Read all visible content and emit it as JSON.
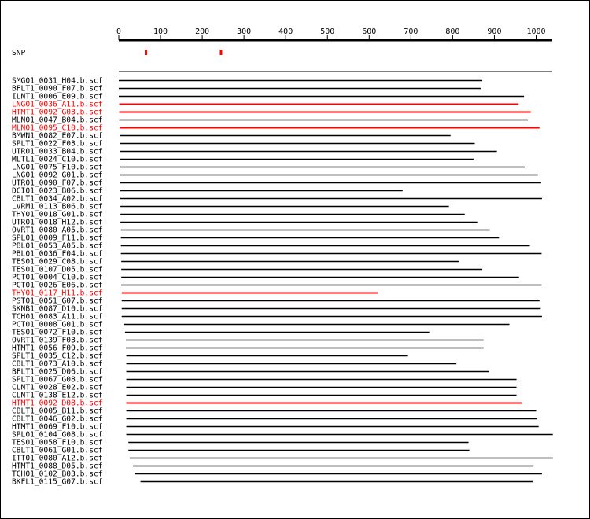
{
  "chart_data": {
    "type": "alignment",
    "axis": {
      "min": 0,
      "max": 1040,
      "ticks": [
        0,
        100,
        200,
        300,
        400,
        500,
        600,
        700,
        800,
        900,
        1000
      ]
    },
    "snp_label": "SNP",
    "snps": [
      65,
      245
    ],
    "colors": {
      "normal": "#000000",
      "highlight": "#ff0000"
    },
    "reads": [
      {
        "name": "SMG01_0031_H04.b.scf",
        "start": 0,
        "end": 871,
        "highlight": false
      },
      {
        "name": "BFLT1_0090_F07.b.scf",
        "start": 0,
        "end": 867,
        "highlight": false
      },
      {
        "name": "ILNT1_0006_E09.b.scf",
        "start": 0,
        "end": 971,
        "highlight": false
      },
      {
        "name": "LNG01_0036_A11.b.scf",
        "start": 1,
        "end": 958,
        "highlight": true
      },
      {
        "name": "HTMT1_0092_G03.b.scf",
        "start": 1,
        "end": 987,
        "highlight": true
      },
      {
        "name": "MLN01_0047_B04.b.scf",
        "start": 1,
        "end": 980,
        "highlight": false
      },
      {
        "name": "MLN01_0095_C10.b.scf",
        "start": 2,
        "end": 1008,
        "highlight": true
      },
      {
        "name": "BMWN1_0082_E07.b.scf",
        "start": 2,
        "end": 795,
        "highlight": false
      },
      {
        "name": "SPLT1_0022_F03.b.scf",
        "start": 2,
        "end": 853,
        "highlight": false
      },
      {
        "name": "UTR01_0033_B04.b.scf",
        "start": 2,
        "end": 906,
        "highlight": false
      },
      {
        "name": "MLTL1_0024_C10.b.scf",
        "start": 2,
        "end": 850,
        "highlight": false
      },
      {
        "name": "LNG01_0075_F10.b.scf",
        "start": 3,
        "end": 974,
        "highlight": false
      },
      {
        "name": "LNG01_0092_G01.b.scf",
        "start": 3,
        "end": 1004,
        "highlight": false
      },
      {
        "name": "UTR01_0090_F07.b.scf",
        "start": 3,
        "end": 1012,
        "highlight": false
      },
      {
        "name": "DCI01_0023_B06.b.scf",
        "start": 3,
        "end": 680,
        "highlight": false
      },
      {
        "name": "CBLT1_0034_A02.b.scf",
        "start": 3,
        "end": 1014,
        "highlight": false
      },
      {
        "name": "LVRM1_0113_B06.b.scf",
        "start": 4,
        "end": 791,
        "highlight": false
      },
      {
        "name": "THY01_0018_G01.b.scf",
        "start": 4,
        "end": 829,
        "highlight": false
      },
      {
        "name": "UTR01_0018_H12.b.scf",
        "start": 4,
        "end": 859,
        "highlight": false
      },
      {
        "name": "OVRT1_0080_A05.b.scf",
        "start": 5,
        "end": 889,
        "highlight": false
      },
      {
        "name": "SPL01_0009_F11.b.scf",
        "start": 5,
        "end": 911,
        "highlight": false
      },
      {
        "name": "PBL01_0053_A05.b.scf",
        "start": 5,
        "end": 985,
        "highlight": false
      },
      {
        "name": "PBL01_0036_F04.b.scf",
        "start": 5,
        "end": 1013,
        "highlight": false
      },
      {
        "name": "TES01_0029_C08.b.scf",
        "start": 6,
        "end": 816,
        "highlight": false
      },
      {
        "name": "TES01_0107_D05.b.scf",
        "start": 6,
        "end": 871,
        "highlight": false
      },
      {
        "name": "PCT01_0004_C10.b.scf",
        "start": 6,
        "end": 959,
        "highlight": false
      },
      {
        "name": "PCT01_0026_E06.b.scf",
        "start": 6,
        "end": 1013,
        "highlight": false
      },
      {
        "name": "THY01_0117_H11.b.scf",
        "start": 7,
        "end": 621,
        "highlight": true
      },
      {
        "name": "PST01_0051_G07.b.scf",
        "start": 7,
        "end": 1008,
        "highlight": false
      },
      {
        "name": "SKNB1_0087_D10.b.scf",
        "start": 7,
        "end": 1011,
        "highlight": false
      },
      {
        "name": "TCH01_0083_A11.b.scf",
        "start": 7,
        "end": 1014,
        "highlight": false
      },
      {
        "name": "PCT01_0008_G01.b.scf",
        "start": 12,
        "end": 936,
        "highlight": false
      },
      {
        "name": "TES01_0072_F10.b.scf",
        "start": 15,
        "end": 744,
        "highlight": false
      },
      {
        "name": "OVRT1_0139_F03.b.scf",
        "start": 17,
        "end": 874,
        "highlight": false
      },
      {
        "name": "HTMT1_0056_F09.b.scf",
        "start": 17,
        "end": 874,
        "highlight": false
      },
      {
        "name": "SPLT1_0035_C12.b.scf",
        "start": 18,
        "end": 693,
        "highlight": false
      },
      {
        "name": "CBLT1_0073_A10.b.scf",
        "start": 18,
        "end": 809,
        "highlight": false
      },
      {
        "name": "BFLT1_0025_D06.b.scf",
        "start": 18,
        "end": 887,
        "highlight": false
      },
      {
        "name": "SPLT1_0067_G08.b.scf",
        "start": 18,
        "end": 953,
        "highlight": false
      },
      {
        "name": "CLNT1_0028_E02.b.scf",
        "start": 18,
        "end": 953,
        "highlight": false
      },
      {
        "name": "CLNT1_0138_E12.b.scf",
        "start": 18,
        "end": 953,
        "highlight": false
      },
      {
        "name": "HTMT1_0092_D08.b.scf",
        "start": 18,
        "end": 966,
        "highlight": true
      },
      {
        "name": "CBLT1_0005_B11.b.scf",
        "start": 18,
        "end": 1000,
        "highlight": false
      },
      {
        "name": "CBLT1_0046_G02.b.scf",
        "start": 18,
        "end": 1002,
        "highlight": false
      },
      {
        "name": "HTMT1_0069_F10.b.scf",
        "start": 18,
        "end": 1006,
        "highlight": false
      },
      {
        "name": "SPL01_0104_G08.b.scf",
        "start": 18,
        "end": 1040,
        "highlight": false
      },
      {
        "name": "TES01_0058_F10.b.scf",
        "start": 23,
        "end": 838,
        "highlight": false
      },
      {
        "name": "CBLT1_0061_G01.b.scf",
        "start": 23,
        "end": 840,
        "highlight": false
      },
      {
        "name": "ITT01_0080_A12.b.scf",
        "start": 26,
        "end": 1040,
        "highlight": false
      },
      {
        "name": "HTMT1_0088_D05.b.scf",
        "start": 34,
        "end": 994,
        "highlight": false
      },
      {
        "name": "TCH01_0102_B03.b.scf",
        "start": 38,
        "end": 1014,
        "highlight": false
      },
      {
        "name": "BKFL1_0115_G07.b.scf",
        "start": 52,
        "end": 992,
        "highlight": false
      }
    ]
  }
}
